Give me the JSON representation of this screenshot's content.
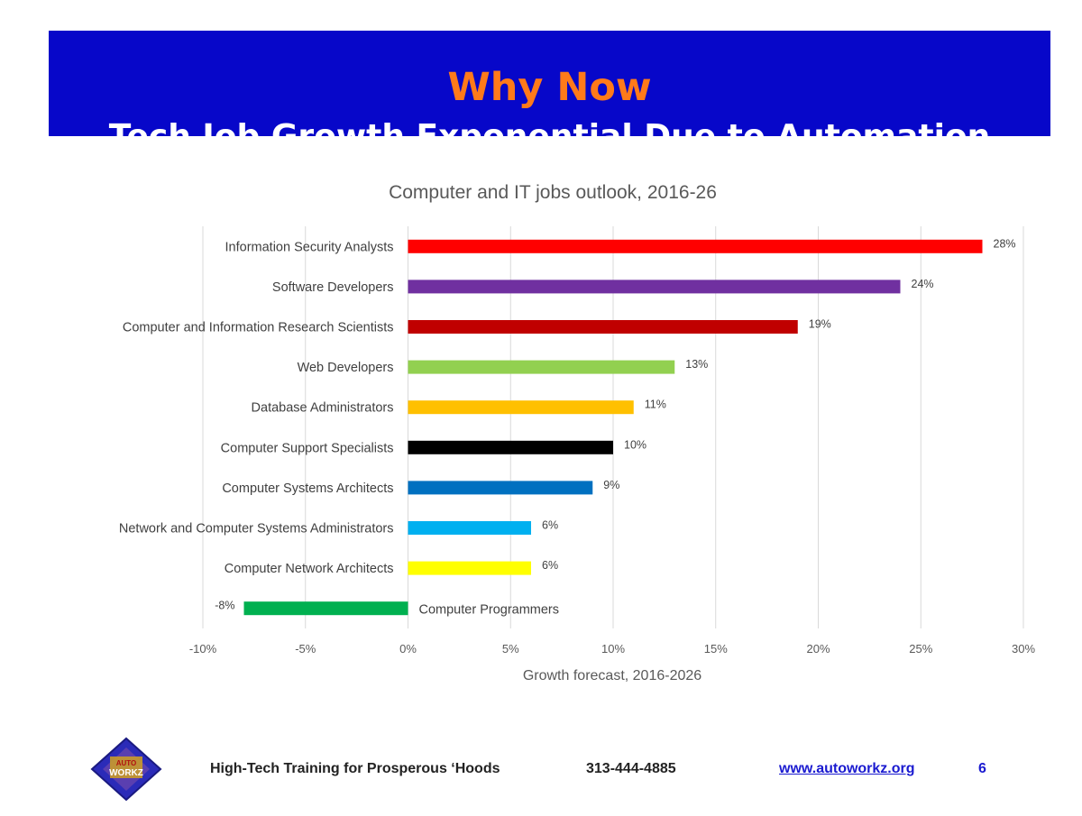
{
  "header": {
    "title": "Why Now",
    "subtitle": "Tech Job Growth Exponential Due to Automation"
  },
  "colors": {
    "banner_bg": "#0707c9",
    "title": "#ff7a1a",
    "subtitle": "#ffffff"
  },
  "chart_data": {
    "type": "bar",
    "orientation": "horizontal",
    "title": "Computer and IT jobs outlook, 2016-26",
    "xlabel": "Growth forecast, 2016-2026",
    "ylabel": "",
    "xlim": [
      -10,
      30
    ],
    "x_ticks": [
      -10,
      -5,
      0,
      5,
      10,
      15,
      20,
      25,
      30
    ],
    "x_tick_labels": [
      "-10%",
      "-5%",
      "0%",
      "5%",
      "10%",
      "15%",
      "20%",
      "25%",
      "30%"
    ],
    "grid": "vertical",
    "categories": [
      "Information Security Analysts",
      "Software Developers",
      "Computer and Information Research Scientists",
      "Web Developers",
      "Database Administrators",
      "Computer Support Specialists",
      "Computer Systems Architects",
      "Network and Computer Systems Administrators",
      "Computer Network Architects",
      "Computer Programmers"
    ],
    "values": [
      28,
      24,
      19,
      13,
      11,
      10,
      9,
      6,
      6,
      -8
    ],
    "value_labels": [
      "28%",
      "24%",
      "19%",
      "13%",
      "11%",
      "10%",
      "9%",
      "6%",
      "6%",
      "-8%"
    ],
    "bar_colors": [
      "#ff0000",
      "#7030a0",
      "#c00000",
      "#92d050",
      "#ffc000",
      "#000000",
      "#0070c0",
      "#00b0f0",
      "#ffff00",
      "#00b050"
    ]
  },
  "footer": {
    "tagline": "High-Tech Training for Prosperous ‘Hoods",
    "phone": "313-444-4885",
    "website": "www.autoworkz.org",
    "page_number": "6",
    "logo_text": [
      "AUTO",
      "WORKZ"
    ]
  }
}
